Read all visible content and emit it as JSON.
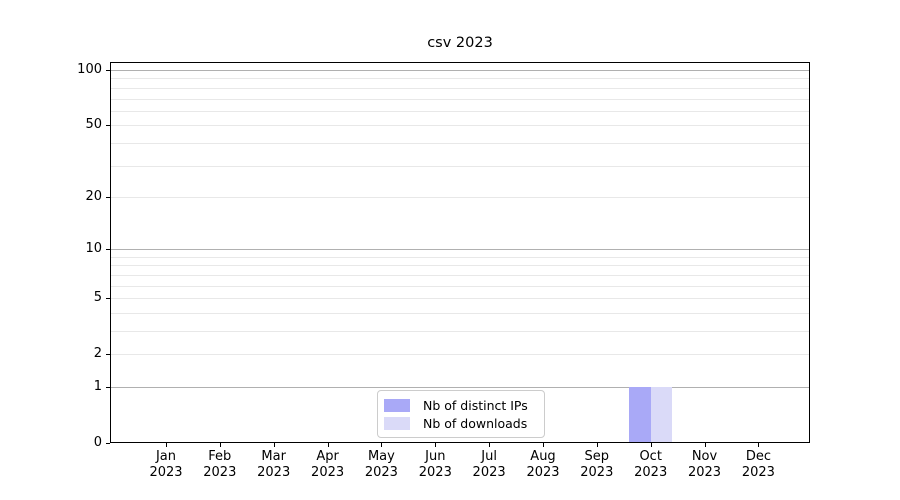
{
  "chart_data": {
    "type": "bar",
    "title": "csv 2023",
    "categories": [
      {
        "month": "Jan",
        "year": "2023"
      },
      {
        "month": "Feb",
        "year": "2023"
      },
      {
        "month": "Mar",
        "year": "2023"
      },
      {
        "month": "Apr",
        "year": "2023"
      },
      {
        "month": "May",
        "year": "2023"
      },
      {
        "month": "Jun",
        "year": "2023"
      },
      {
        "month": "Jul",
        "year": "2023"
      },
      {
        "month": "Aug",
        "year": "2023"
      },
      {
        "month": "Sep",
        "year": "2023"
      },
      {
        "month": "Oct",
        "year": "2023"
      },
      {
        "month": "Nov",
        "year": "2023"
      },
      {
        "month": "Dec",
        "year": "2023"
      }
    ],
    "series": [
      {
        "name": "Nb of distinct IPs",
        "color": "#a9a9f7",
        "values": [
          0,
          0,
          0,
          0,
          0,
          0,
          0,
          0,
          0,
          1,
          0,
          0
        ]
      },
      {
        "name": "Nb of downloads",
        "color": "#dadaf8",
        "values": [
          0,
          0,
          0,
          0,
          0,
          0,
          0,
          0,
          0,
          1,
          0,
          0
        ]
      }
    ],
    "xlabel": "",
    "ylabel": "",
    "yscale": "log1p",
    "ylim": [
      0,
      110
    ],
    "yticks": [
      0,
      1,
      2,
      5,
      10,
      20,
      50,
      100
    ],
    "grid": {
      "major_lines": [
        1,
        10,
        100
      ],
      "minor_lines": [
        2,
        3,
        4,
        5,
        6,
        7,
        8,
        9,
        20,
        30,
        40,
        50,
        60,
        70,
        80,
        90
      ],
      "major_color": "#b0b0b0",
      "minor_color": "#e8e8e8"
    },
    "legend": {
      "position": "lower center"
    }
  }
}
